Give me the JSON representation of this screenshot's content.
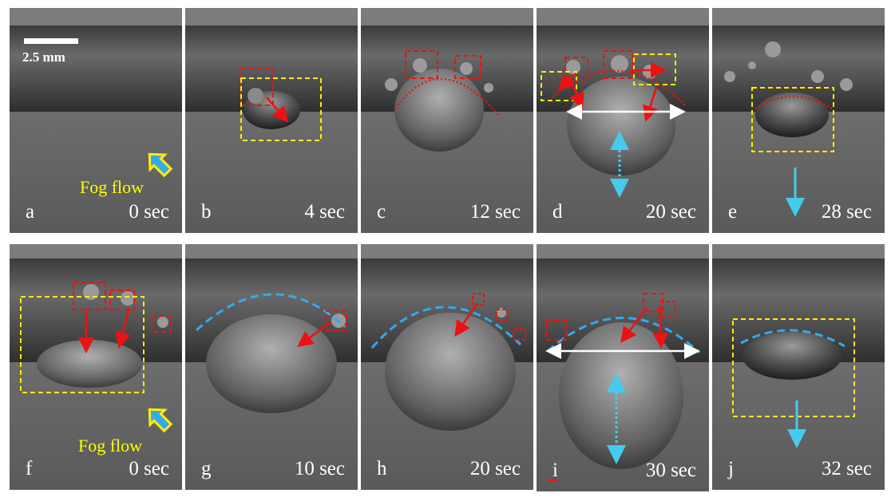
{
  "scale_bar": {
    "label": "2.5 mm"
  },
  "fog_label": "Fog flow",
  "colors": {
    "marker_red": "#ee1111",
    "box_yellow": "#ffee00",
    "cyan": "#44ccee",
    "white": "#ffffff"
  },
  "panels": [
    {
      "letter": "a",
      "time": "0 sec"
    },
    {
      "letter": "b",
      "time": "4 sec"
    },
    {
      "letter": "c",
      "time": "12 sec"
    },
    {
      "letter": "d",
      "time": "20 sec"
    },
    {
      "letter": "e",
      "time": "28 sec"
    },
    {
      "letter": "f",
      "time": "0 sec"
    },
    {
      "letter": "g",
      "time": "10 sec"
    },
    {
      "letter": "h",
      "time": "20 sec"
    },
    {
      "letter": "i",
      "time": "30 sec"
    },
    {
      "letter": "j",
      "time": "32 sec"
    }
  ]
}
